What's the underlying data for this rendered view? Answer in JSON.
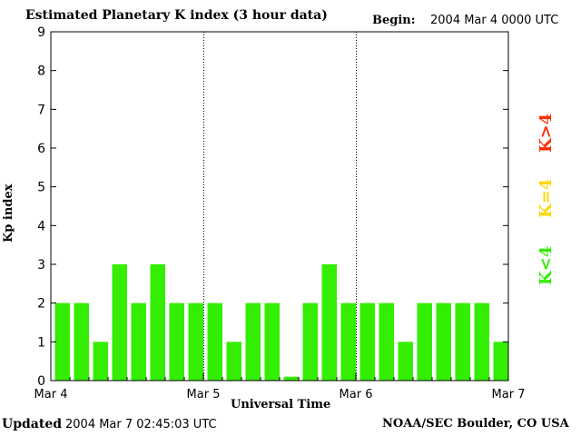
{
  "header": {
    "title": "Estimated Planetary K index (3 hour data)",
    "begin_label": "Begin:",
    "begin_value": "2004 Mar 4 0000 UTC"
  },
  "footer": {
    "updated_label": "Updated",
    "updated_value": "2004 Mar  7 02:45:03 UTC",
    "credit": "NOAA/SEC Boulder, CO USA"
  },
  "legend": {
    "high": {
      "label": "K>4",
      "color": "#ff2a00"
    },
    "equal": {
      "label": "K=4",
      "color": "#ffd700"
    },
    "low": {
      "label": "K<4",
      "color": "#33ee00"
    }
  },
  "chart_data": {
    "type": "bar",
    "title": "Estimated Planetary K index (3 hour data)",
    "xlabel": "Universal Time",
    "ylabel": "Kp index",
    "ylim": [
      0,
      9
    ],
    "yticks": [
      0,
      1,
      2,
      3,
      4,
      5,
      6,
      7,
      8,
      9
    ],
    "xticks": [
      "Mar 4",
      "Mar 5",
      "Mar 6",
      "Mar 7"
    ],
    "interval_hours": 3,
    "bar_color": "#33ee00",
    "values": [
      2,
      2,
      1,
      3,
      2,
      3,
      2,
      2,
      2,
      1,
      2,
      2,
      0.1,
      2,
      3,
      2,
      2,
      2,
      1,
      2,
      2,
      2,
      2,
      1
    ]
  }
}
